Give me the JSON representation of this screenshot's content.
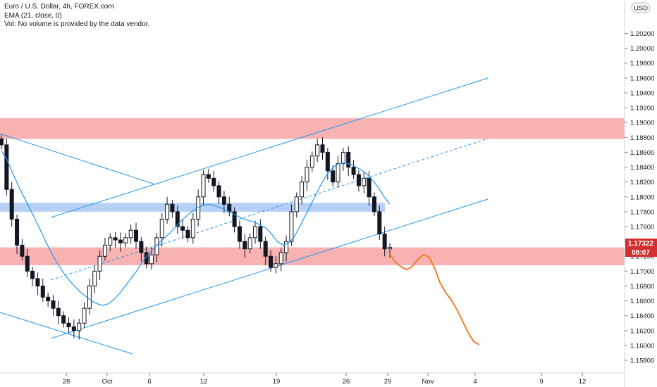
{
  "legend": {
    "symbol_line": "Euro / U.S. Dollar, 4h, FOREX.com",
    "ema_line": "EMA (21, close, 0)",
    "vol_line": "Vol: No volume is provided by the data vendor."
  },
  "currency_label": "USD",
  "price_badge": {
    "value": "1.17322",
    "color": "#d32f2f"
  },
  "time_badge": {
    "value": "08:07",
    "color": "#d32f2f"
  },
  "chart_data": {
    "type": "candlestick",
    "symbol": "EURUSD",
    "timeframe": "4h",
    "y_axis": {
      "ticks": [
        "1.20200",
        "1.20000",
        "1.19800",
        "1.19600",
        "1.19400",
        "1.19200",
        "1.19000",
        "1.18800",
        "1.18600",
        "1.18400",
        "1.18200",
        "1.18000",
        "1.17800",
        "1.17600",
        "1.17400",
        "1.17200",
        "1.17000",
        "1.16800",
        "1.16600",
        "1.16400",
        "1.16200",
        "1.16000",
        "1.15800"
      ],
      "ylim": [
        1.1563,
        1.2065
      ]
    },
    "x_axis": {
      "ticks": [
        "28",
        "Oct",
        "6",
        "12",
        "19",
        "26",
        "29",
        "Nov",
        "4",
        "9",
        "12"
      ]
    },
    "colors": {
      "up_candle": "#ffffff",
      "down_candle": "#131722",
      "ema": "#2196f3",
      "channel": "#2196f3",
      "resistance_zone": "#f7a5a5",
      "support_zone": "#f7a5a5",
      "blue_zone": "#a9c8f5",
      "projection": "#f57c2c"
    },
    "zones": [
      {
        "name": "upper-red-zone",
        "from": 1.1878,
        "to": 1.1906,
        "color": "#f7a5a5"
      },
      {
        "name": "blue-zone",
        "from": 1.178,
        "to": 1.1792,
        "color": "#a9c8f5"
      },
      {
        "name": "lower-red-zone",
        "from": 1.1708,
        "to": 1.1732,
        "color": "#f7a5a5"
      }
    ],
    "ema_21": [
      1.1862,
      1.185,
      1.1832,
      1.1815,
      1.18,
      1.1785,
      1.177,
      1.1754,
      1.1738,
      1.1723,
      1.171,
      1.1698,
      1.1688,
      1.168,
      1.1672,
      1.1666,
      1.166,
      1.1656,
      1.1654,
      1.1656,
      1.1662,
      1.167,
      1.168,
      1.169,
      1.17,
      1.1712,
      1.1722,
      1.173,
      1.1738,
      1.1745,
      1.1752,
      1.176,
      1.1768,
      1.1775,
      1.1781,
      1.1786,
      1.1789,
      1.179,
      1.1788,
      1.1785,
      1.1782,
      1.1778,
      1.1774,
      1.177,
      1.1768,
      1.1766,
      1.1762,
      1.1758,
      1.175,
      1.174,
      1.1735,
      1.1738,
      1.1746,
      1.176,
      1.1775,
      1.179,
      1.1805,
      1.182,
      1.1832,
      1.184,
      1.1845,
      1.1846,
      1.1844,
      1.184,
      1.1836,
      1.183,
      1.1822,
      1.1812,
      1.18,
      1.179
    ],
    "candles_close": [
      1.187,
      1.181,
      1.177,
      1.1735,
      1.172,
      1.17,
      1.169,
      1.168,
      1.1665,
      1.166,
      1.165,
      1.164,
      1.163,
      1.1625,
      1.162,
      1.163,
      1.165,
      1.168,
      1.17,
      1.172,
      1.1735,
      1.1745,
      1.1742,
      1.1738,
      1.1745,
      1.1755,
      1.174,
      1.1725,
      1.171,
      1.1722,
      1.1745,
      1.177,
      1.179,
      1.178,
      1.176,
      1.1755,
      1.1745,
      1.177,
      1.18,
      1.183,
      1.1825,
      1.1815,
      1.18,
      1.179,
      1.178,
      1.176,
      1.174,
      1.173,
      1.1745,
      1.176,
      1.174,
      1.172,
      1.1705,
      1.171,
      1.1725,
      1.174,
      1.178,
      1.18,
      1.182,
      1.184,
      1.1855,
      1.187,
      1.186,
      1.1835,
      1.182,
      1.1845,
      1.186,
      1.184,
      1.183,
      1.1815,
      1.1825,
      1.18,
      1.178,
      1.175,
      1.173,
      1.1732
    ],
    "projection_path": [
      1.1723,
      1.1712,
      1.1706,
      1.1702,
      1.1706,
      1.1716,
      1.1722,
      1.1719,
      1.1704,
      1.1684,
      1.1671,
      1.1661,
      1.1648,
      1.1633,
      1.1617,
      1.1605,
      1.1601
    ],
    "channel_lines": [
      {
        "name": "upper-channel",
        "from": [
          1.1782,
          "x0"
        ],
        "to": [
          1.1948,
          "x1"
        ]
      },
      {
        "name": "mid-channel-dashed",
        "from": [
          1.1698,
          "x0"
        ],
        "to": [
          1.187,
          "x1"
        ]
      },
      {
        "name": "lower-channel",
        "from": [
          1.1616,
          "x0"
        ],
        "to": [
          1.1791,
          "x1"
        ]
      }
    ]
  }
}
